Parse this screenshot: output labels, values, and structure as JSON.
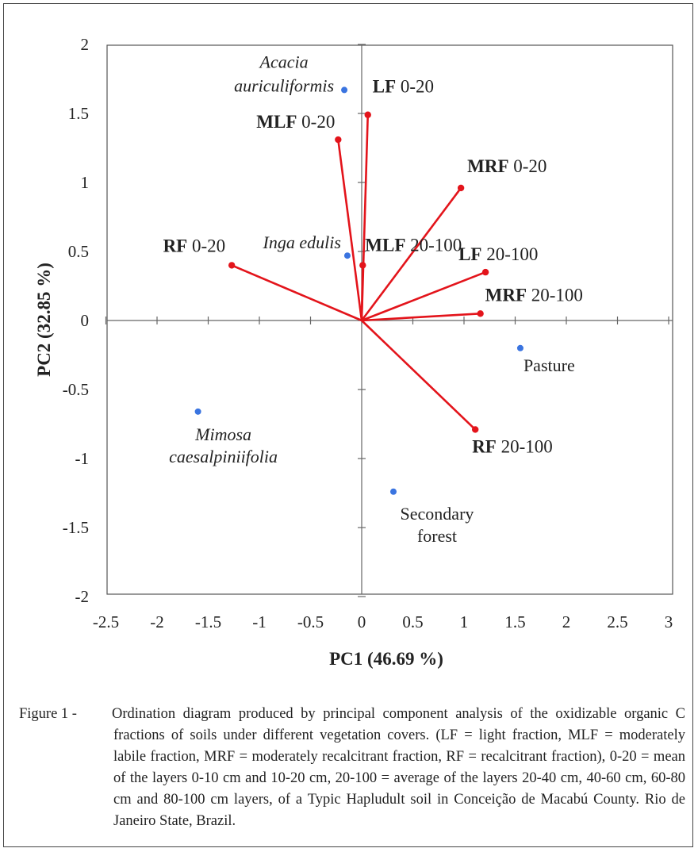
{
  "chart_data": {
    "type": "scatter",
    "subtype": "pca-biplot",
    "xlabel": "PC1 (46.69 %)",
    "ylabel": "PC2 (32.85 %)",
    "xlim": [
      -2.5,
      3
    ],
    "ylim": [
      -2,
      2
    ],
    "x_ticks": [
      "-2.5",
      "-2",
      "-1.5",
      "-1",
      "-0.5",
      "0",
      "0.5",
      "1",
      "1.5",
      "2",
      "2.5",
      "3"
    ],
    "y_ticks": [
      "2",
      "1.5",
      "1",
      "0.5",
      "0",
      "-0.5",
      "-1",
      "-1.5",
      "-2"
    ],
    "grid": false,
    "vector_color": "#e3141b",
    "point_color": "#3a74e0",
    "loadings": [
      {
        "bold": "LF",
        "rest": " 0-20",
        "x": 0.06,
        "y": 1.49
      },
      {
        "bold": "MLF",
        "rest": " 0-20",
        "x": -0.23,
        "y": 1.31
      },
      {
        "bold": "MRF",
        "rest": " 0-20",
        "x": 0.97,
        "y": 0.96
      },
      {
        "bold": "RF",
        "rest": " 0-20",
        "x": -1.27,
        "y": 0.4
      },
      {
        "bold": "MLF",
        "rest": " 20-100",
        "x": 0.01,
        "y": 0.4
      },
      {
        "bold": "LF",
        "rest": " 20-100",
        "x": 1.21,
        "y": 0.35
      },
      {
        "bold": "MRF",
        "rest": " 20-100",
        "x": 1.16,
        "y": 0.05
      },
      {
        "bold": "RF",
        "rest": " 20-100",
        "x": 1.11,
        "y": -0.79
      }
    ],
    "scores": [
      {
        "lines": [
          "Acacia",
          "auriculiformis"
        ],
        "italic": true,
        "x": -0.17,
        "y": 1.67
      },
      {
        "lines": [
          "Inga edulis"
        ],
        "italic": true,
        "x": -0.14,
        "y": 0.47
      },
      {
        "lines": [
          "Pasture"
        ],
        "italic": false,
        "x": 1.55,
        "y": -0.2
      },
      {
        "lines": [
          "Mimosa",
          "caesalpiniifolia"
        ],
        "italic": true,
        "x": -1.6,
        "y": -0.66
      },
      {
        "lines": [
          "Secondary",
          "forest"
        ],
        "italic": false,
        "x": 0.31,
        "y": -1.24
      }
    ]
  },
  "caption": {
    "lead": "Figure 1 - ",
    "text": "Ordination diagram produced by principal component analysis of the oxidizable organic C fractions of soils under different vegetation covers. (LF = light fraction, MLF = moderately labile fraction, MRF = moderately recalcitrant fraction, RF = recalcitrant fraction), 0-20 = mean of the layers 0-10 cm and 10-20 cm, 20-100 = average of the layers 20-40 cm, 40-60 cm, 60-80 cm and 80-100 cm layers, of a Typic Hapludult soil in Conceição de Macabú County. Rio de Janeiro State, Brazil."
  }
}
